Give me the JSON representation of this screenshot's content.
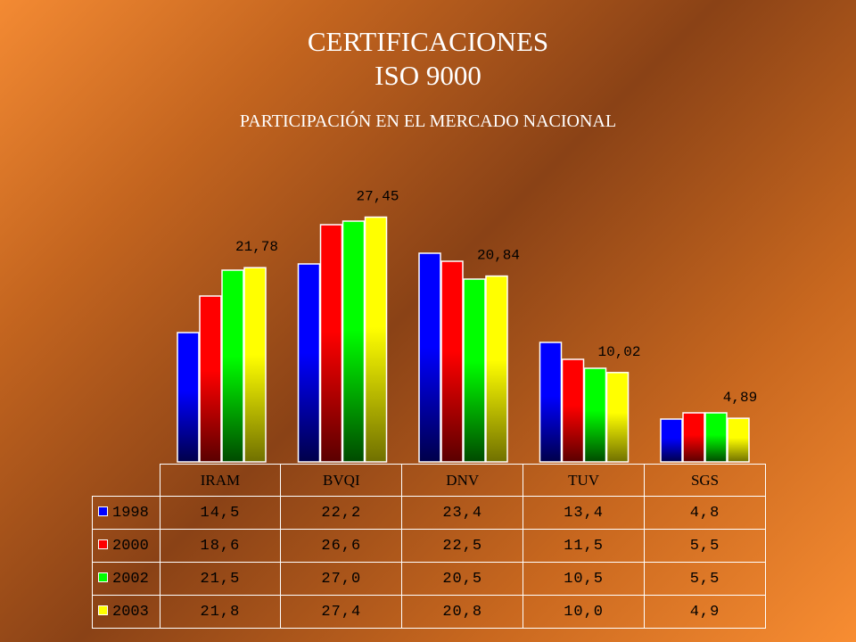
{
  "title_line1": "CERTIFICACIONES",
  "title_line2": "ISO 9000",
  "subtitle": "PARTICIPACIÓN EN EL MERCADO NACIONAL",
  "chart_data": {
    "type": "bar",
    "categories": [
      "IRAM",
      "BVQI",
      "DNV",
      "TUV",
      "SGS"
    ],
    "series": [
      {
        "name": "1998",
        "values": [
          14.5,
          22.2,
          23.4,
          13.4,
          4.8
        ],
        "display": [
          "14,5",
          "22,2",
          "23,4",
          "13,4",
          "4,8"
        ],
        "color": "#0000ff"
      },
      {
        "name": "2000",
        "values": [
          18.6,
          26.6,
          22.5,
          11.5,
          5.5
        ],
        "display": [
          "18,6",
          "26,6",
          "22,5",
          "11,5",
          "5,5"
        ],
        "color": "#ff0000"
      },
      {
        "name": "2002",
        "values": [
          21.5,
          27.0,
          20.5,
          10.5,
          5.5
        ],
        "display": [
          "21,5",
          "27,0",
          "20,5",
          "10,5",
          "5,5"
        ],
        "color": "#00ff00"
      },
      {
        "name": "2003",
        "values": [
          21.78,
          27.45,
          20.84,
          10.02,
          4.89
        ],
        "display": [
          "21,8",
          "27,4",
          "20,8",
          "10,0",
          "4,9"
        ],
        "color": "#ffff00"
      }
    ],
    "data_labels": [
      "21,78",
      "27,45",
      "20,84",
      "10,02",
      "4,89"
    ],
    "ylim": [
      0,
      30
    ],
    "grid": false,
    "legend": "table-below"
  }
}
